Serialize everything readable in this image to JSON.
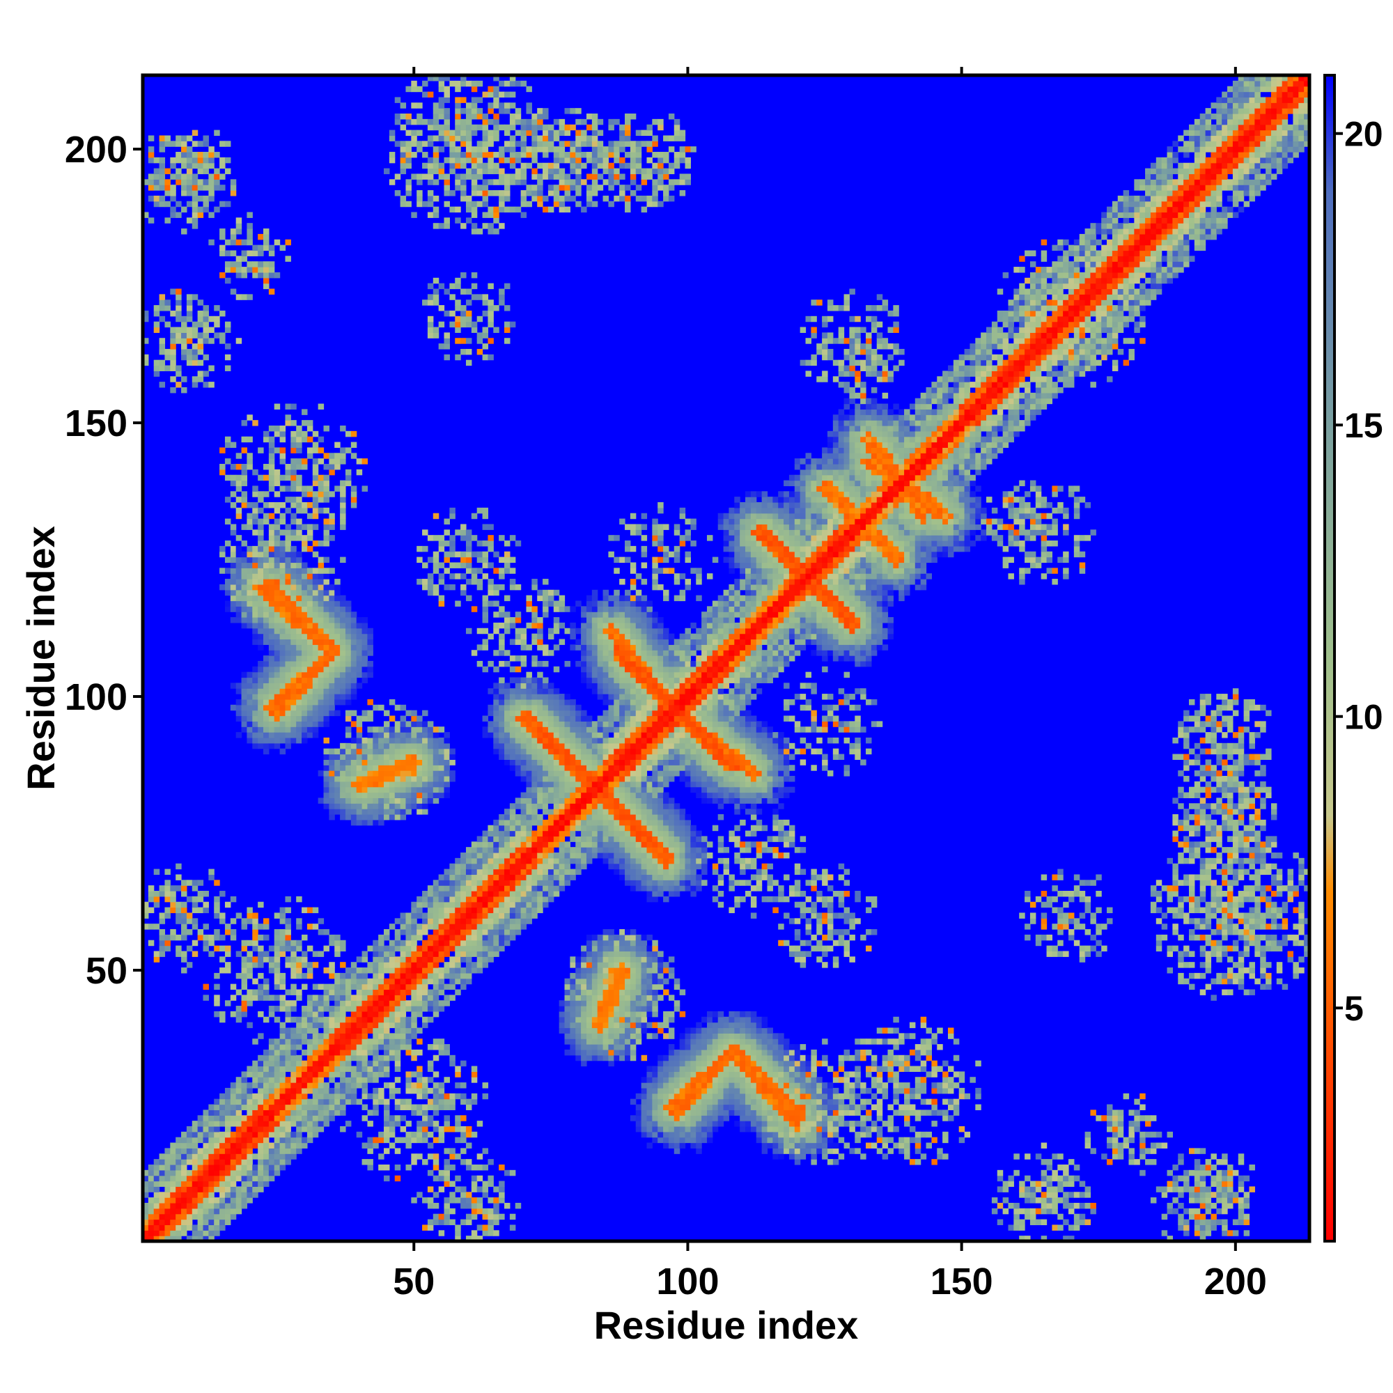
{
  "chart_data": {
    "type": "heatmap",
    "title": "",
    "xlabel": "Residue index",
    "ylabel": "Residue index",
    "xlim": [
      1,
      213
    ],
    "ylim": [
      1,
      213
    ],
    "x_ticks": [
      50,
      100,
      150,
      200
    ],
    "y_ticks": [
      50,
      100,
      150,
      200
    ],
    "n_residues": 213,
    "colorbar": {
      "range": [
        1,
        21
      ],
      "ticks": [
        5,
        10,
        15,
        20
      ],
      "colors": [
        {
          "value": 1,
          "color": "#ff0000"
        },
        {
          "value": 4,
          "color": "#ff4500"
        },
        {
          "value": 7,
          "color": "#ff8c00"
        },
        {
          "value": 8.3,
          "color": "#c8c88c"
        },
        {
          "value": 11,
          "color": "#a0c08c"
        },
        {
          "value": 15,
          "color": "#7aa0a0"
        },
        {
          "value": 19,
          "color": "#4f6ec0"
        },
        {
          "value": 21,
          "color": "#0000ff"
        }
      ],
      "background_color": "#0000ff"
    },
    "grid": false,
    "diagonal_width": 3,
    "helix_ranges": [
      [
        2,
        22
      ],
      [
        35,
        70
      ],
      [
        85,
        105
      ],
      [
        118,
        128
      ],
      [
        150,
        210
      ]
    ],
    "contact_arcs": [
      {
        "from": [
          22,
          120
        ],
        "to": [
          35,
          108
        ],
        "value": 6
      },
      {
        "from": [
          35,
          108
        ],
        "to": [
          25,
          97
        ],
        "value": 6
      },
      {
        "from": [
          70,
          96
        ],
        "to": [
          83,
          83
        ],
        "value": 5
      },
      {
        "from": [
          83,
          83
        ],
        "to": [
          96,
          70
        ],
        "value": 6
      },
      {
        "from": [
          87,
          108
        ],
        "to": [
          100,
          95
        ],
        "value": 5
      },
      {
        "from": [
          100,
          95
        ],
        "to": [
          112,
          86
        ],
        "value": 6
      },
      {
        "from": [
          113,
          130
        ],
        "to": [
          123,
          120
        ],
        "value": 5
      },
      {
        "from": [
          123,
          120
        ],
        "to": [
          130,
          113
        ],
        "value": 6
      },
      {
        "from": [
          125,
          138
        ],
        "to": [
          130,
          133
        ],
        "value": 6
      },
      {
        "from": [
          133,
          147
        ],
        "to": [
          143,
          133
        ],
        "value": 6
      },
      {
        "from": [
          98,
          24
        ],
        "to": [
          108,
          35
        ],
        "value": 6
      },
      {
        "from": [
          108,
          35
        ],
        "to": [
          120,
          24
        ],
        "value": 6
      },
      {
        "from": [
          40,
          84
        ],
        "to": [
          50,
          88
        ],
        "value": 7
      },
      {
        "from": [
          84,
          40
        ],
        "to": [
          88,
          50
        ],
        "value": 7
      }
    ],
    "contact_blobs": [
      {
        "center": [
          60,
          200
        ],
        "radius": 16,
        "density": 0.65
      },
      {
        "center": [
          78,
          198
        ],
        "radius": 10,
        "density": 0.55
      },
      {
        "center": [
          92,
          198
        ],
        "radius": 10,
        "density": 0.5
      },
      {
        "center": [
          8,
          195
        ],
        "radius": 10,
        "density": 0.5
      },
      {
        "center": [
          8,
          165
        ],
        "radius": 10,
        "density": 0.5
      },
      {
        "center": [
          28,
          140
        ],
        "radius": 14,
        "density": 0.45
      },
      {
        "center": [
          60,
          170
        ],
        "radius": 9,
        "density": 0.35
      },
      {
        "center": [
          60,
          125
        ],
        "radius": 10,
        "density": 0.4
      },
      {
        "center": [
          95,
          125
        ],
        "radius": 10,
        "density": 0.35
      },
      {
        "center": [
          130,
          165
        ],
        "radius": 10,
        "density": 0.35
      },
      {
        "center": [
          170,
          170
        ],
        "radius": 14,
        "density": 0.5
      },
      {
        "center": [
          160,
          130
        ],
        "radius": 8,
        "density": 0.4
      },
      {
        "center": [
          200,
          60
        ],
        "radius": 16,
        "density": 0.65
      },
      {
        "center": [
          198,
          78
        ],
        "radius": 10,
        "density": 0.55
      },
      {
        "center": [
          198,
          92
        ],
        "radius": 10,
        "density": 0.5
      },
      {
        "center": [
          195,
          8
        ],
        "radius": 10,
        "density": 0.5
      },
      {
        "center": [
          165,
          8
        ],
        "radius": 10,
        "density": 0.5
      },
      {
        "center": [
          140,
          28
        ],
        "radius": 14,
        "density": 0.45
      },
      {
        "center": [
          170,
          60
        ],
        "radius": 9,
        "density": 0.35
      },
      {
        "center": [
          125,
          60
        ],
        "radius": 10,
        "density": 0.4
      },
      {
        "center": [
          125,
          95
        ],
        "radius": 10,
        "density": 0.35
      },
      {
        "center": [
          165,
          130
        ],
        "radius": 10,
        "density": 0.35
      },
      {
        "center": [
          8,
          60
        ],
        "radius": 10,
        "density": 0.5
      },
      {
        "center": [
          60,
          8
        ],
        "radius": 10,
        "density": 0.5
      },
      {
        "center": [
          50,
          25
        ],
        "radius": 14,
        "density": 0.45
      },
      {
        "center": [
          25,
          50
        ],
        "radius": 14,
        "density": 0.45
      },
      {
        "center": [
          88,
          45
        ],
        "radius": 12,
        "density": 0.45
      },
      {
        "center": [
          45,
          88
        ],
        "radius": 12,
        "density": 0.45
      },
      {
        "center": [
          112,
          70
        ],
        "radius": 10,
        "density": 0.4
      },
      {
        "center": [
          70,
          112
        ],
        "radius": 10,
        "density": 0.4
      },
      {
        "center": [
          125,
          25
        ],
        "radius": 12,
        "density": 0.45
      },
      {
        "center": [
          25,
          125
        ],
        "radius": 12,
        "density": 0.45
      },
      {
        "center": [
          180,
          20
        ],
        "radius": 8,
        "density": 0.35
      },
      {
        "center": [
          20,
          180
        ],
        "radius": 8,
        "density": 0.35
      }
    ]
  }
}
